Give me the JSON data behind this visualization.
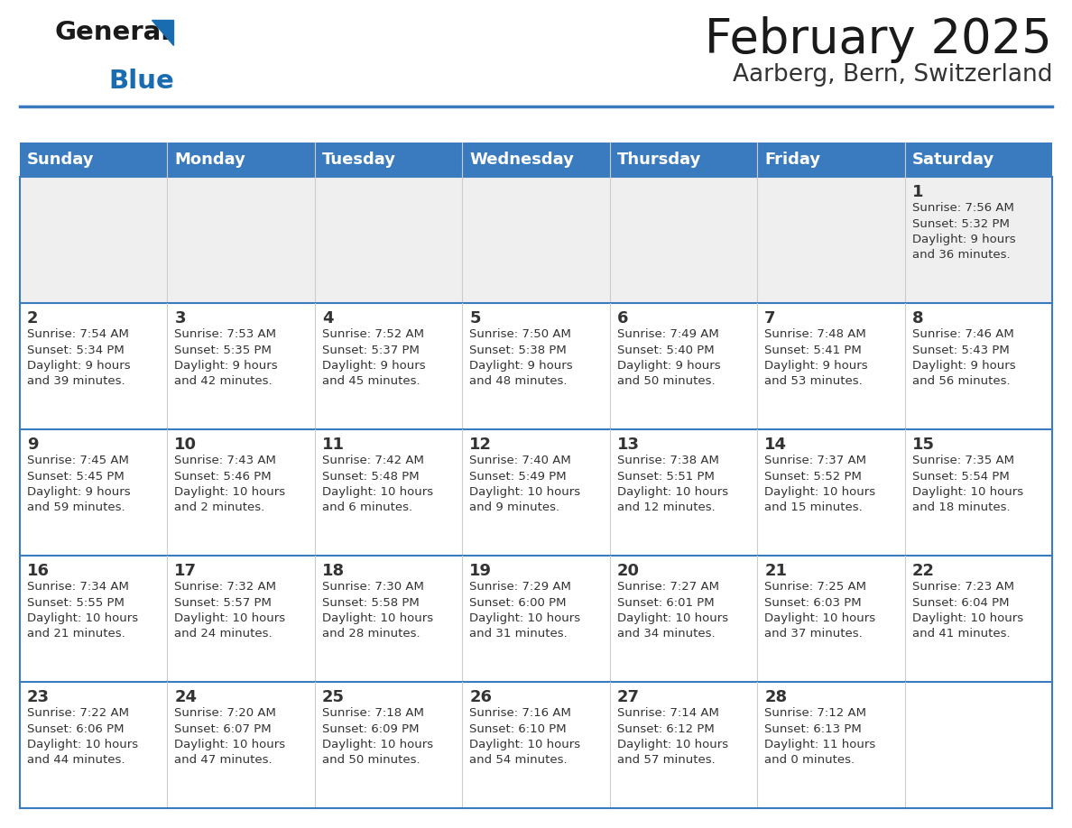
{
  "title": "February 2025",
  "subtitle": "Aarberg, Bern, Switzerland",
  "header_color": "#3a7abf",
  "header_text_color": "#ffffff",
  "bg_color": "#ffffff",
  "alt_row_color": "#efefef",
  "text_color": "#333333",
  "border_color": "#3a7abf",
  "days_of_week": [
    "Sunday",
    "Monday",
    "Tuesday",
    "Wednesday",
    "Thursday",
    "Friday",
    "Saturday"
  ],
  "weeks": [
    [
      {
        "day": null,
        "info": null
      },
      {
        "day": null,
        "info": null
      },
      {
        "day": null,
        "info": null
      },
      {
        "day": null,
        "info": null
      },
      {
        "day": null,
        "info": null
      },
      {
        "day": null,
        "info": null
      },
      {
        "day": 1,
        "info": "Sunrise: 7:56 AM\nSunset: 5:32 PM\nDaylight: 9 hours\nand 36 minutes."
      }
    ],
    [
      {
        "day": 2,
        "info": "Sunrise: 7:54 AM\nSunset: 5:34 PM\nDaylight: 9 hours\nand 39 minutes."
      },
      {
        "day": 3,
        "info": "Sunrise: 7:53 AM\nSunset: 5:35 PM\nDaylight: 9 hours\nand 42 minutes."
      },
      {
        "day": 4,
        "info": "Sunrise: 7:52 AM\nSunset: 5:37 PM\nDaylight: 9 hours\nand 45 minutes."
      },
      {
        "day": 5,
        "info": "Sunrise: 7:50 AM\nSunset: 5:38 PM\nDaylight: 9 hours\nand 48 minutes."
      },
      {
        "day": 6,
        "info": "Sunrise: 7:49 AM\nSunset: 5:40 PM\nDaylight: 9 hours\nand 50 minutes."
      },
      {
        "day": 7,
        "info": "Sunrise: 7:48 AM\nSunset: 5:41 PM\nDaylight: 9 hours\nand 53 minutes."
      },
      {
        "day": 8,
        "info": "Sunrise: 7:46 AM\nSunset: 5:43 PM\nDaylight: 9 hours\nand 56 minutes."
      }
    ],
    [
      {
        "day": 9,
        "info": "Sunrise: 7:45 AM\nSunset: 5:45 PM\nDaylight: 9 hours\nand 59 minutes."
      },
      {
        "day": 10,
        "info": "Sunrise: 7:43 AM\nSunset: 5:46 PM\nDaylight: 10 hours\nand 2 minutes."
      },
      {
        "day": 11,
        "info": "Sunrise: 7:42 AM\nSunset: 5:48 PM\nDaylight: 10 hours\nand 6 minutes."
      },
      {
        "day": 12,
        "info": "Sunrise: 7:40 AM\nSunset: 5:49 PM\nDaylight: 10 hours\nand 9 minutes."
      },
      {
        "day": 13,
        "info": "Sunrise: 7:38 AM\nSunset: 5:51 PM\nDaylight: 10 hours\nand 12 minutes."
      },
      {
        "day": 14,
        "info": "Sunrise: 7:37 AM\nSunset: 5:52 PM\nDaylight: 10 hours\nand 15 minutes."
      },
      {
        "day": 15,
        "info": "Sunrise: 7:35 AM\nSunset: 5:54 PM\nDaylight: 10 hours\nand 18 minutes."
      }
    ],
    [
      {
        "day": 16,
        "info": "Sunrise: 7:34 AM\nSunset: 5:55 PM\nDaylight: 10 hours\nand 21 minutes."
      },
      {
        "day": 17,
        "info": "Sunrise: 7:32 AM\nSunset: 5:57 PM\nDaylight: 10 hours\nand 24 minutes."
      },
      {
        "day": 18,
        "info": "Sunrise: 7:30 AM\nSunset: 5:58 PM\nDaylight: 10 hours\nand 28 minutes."
      },
      {
        "day": 19,
        "info": "Sunrise: 7:29 AM\nSunset: 6:00 PM\nDaylight: 10 hours\nand 31 minutes."
      },
      {
        "day": 20,
        "info": "Sunrise: 7:27 AM\nSunset: 6:01 PM\nDaylight: 10 hours\nand 34 minutes."
      },
      {
        "day": 21,
        "info": "Sunrise: 7:25 AM\nSunset: 6:03 PM\nDaylight: 10 hours\nand 37 minutes."
      },
      {
        "day": 22,
        "info": "Sunrise: 7:23 AM\nSunset: 6:04 PM\nDaylight: 10 hours\nand 41 minutes."
      }
    ],
    [
      {
        "day": 23,
        "info": "Sunrise: 7:22 AM\nSunset: 6:06 PM\nDaylight: 10 hours\nand 44 minutes."
      },
      {
        "day": 24,
        "info": "Sunrise: 7:20 AM\nSunset: 6:07 PM\nDaylight: 10 hours\nand 47 minutes."
      },
      {
        "day": 25,
        "info": "Sunrise: 7:18 AM\nSunset: 6:09 PM\nDaylight: 10 hours\nand 50 minutes."
      },
      {
        "day": 26,
        "info": "Sunrise: 7:16 AM\nSunset: 6:10 PM\nDaylight: 10 hours\nand 54 minutes."
      },
      {
        "day": 27,
        "info": "Sunrise: 7:14 AM\nSunset: 6:12 PM\nDaylight: 10 hours\nand 57 minutes."
      },
      {
        "day": 28,
        "info": "Sunrise: 7:12 AM\nSunset: 6:13 PM\nDaylight: 11 hours\nand 0 minutes."
      },
      {
        "day": null,
        "info": null
      }
    ]
  ],
  "title_fontsize": 38,
  "subtitle_fontsize": 19,
  "header_fontsize": 13,
  "day_num_fontsize": 13,
  "info_fontsize": 9.5,
  "logo_general_fontsize": 21,
  "logo_blue_fontsize": 21
}
